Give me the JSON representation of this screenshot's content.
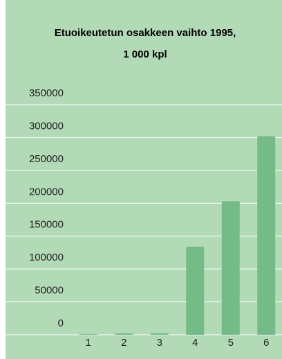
{
  "chart_data": {
    "type": "bar",
    "title": "Etuoikeutetun osakkeen vaihto 1995,",
    "subtitle": "1 000 kpl",
    "categories": [
      "1",
      "2",
      "3",
      "4",
      "5",
      "6"
    ],
    "values": [
      1000,
      2000,
      2000,
      134000,
      203000,
      302000
    ],
    "color": "#74bb87",
    "background": "#b3dab7",
    "ylim": [
      0,
      350000
    ],
    "yticks": [
      0,
      50000,
      100000,
      150000,
      200000,
      250000,
      300000,
      350000
    ],
    "grid": true
  }
}
